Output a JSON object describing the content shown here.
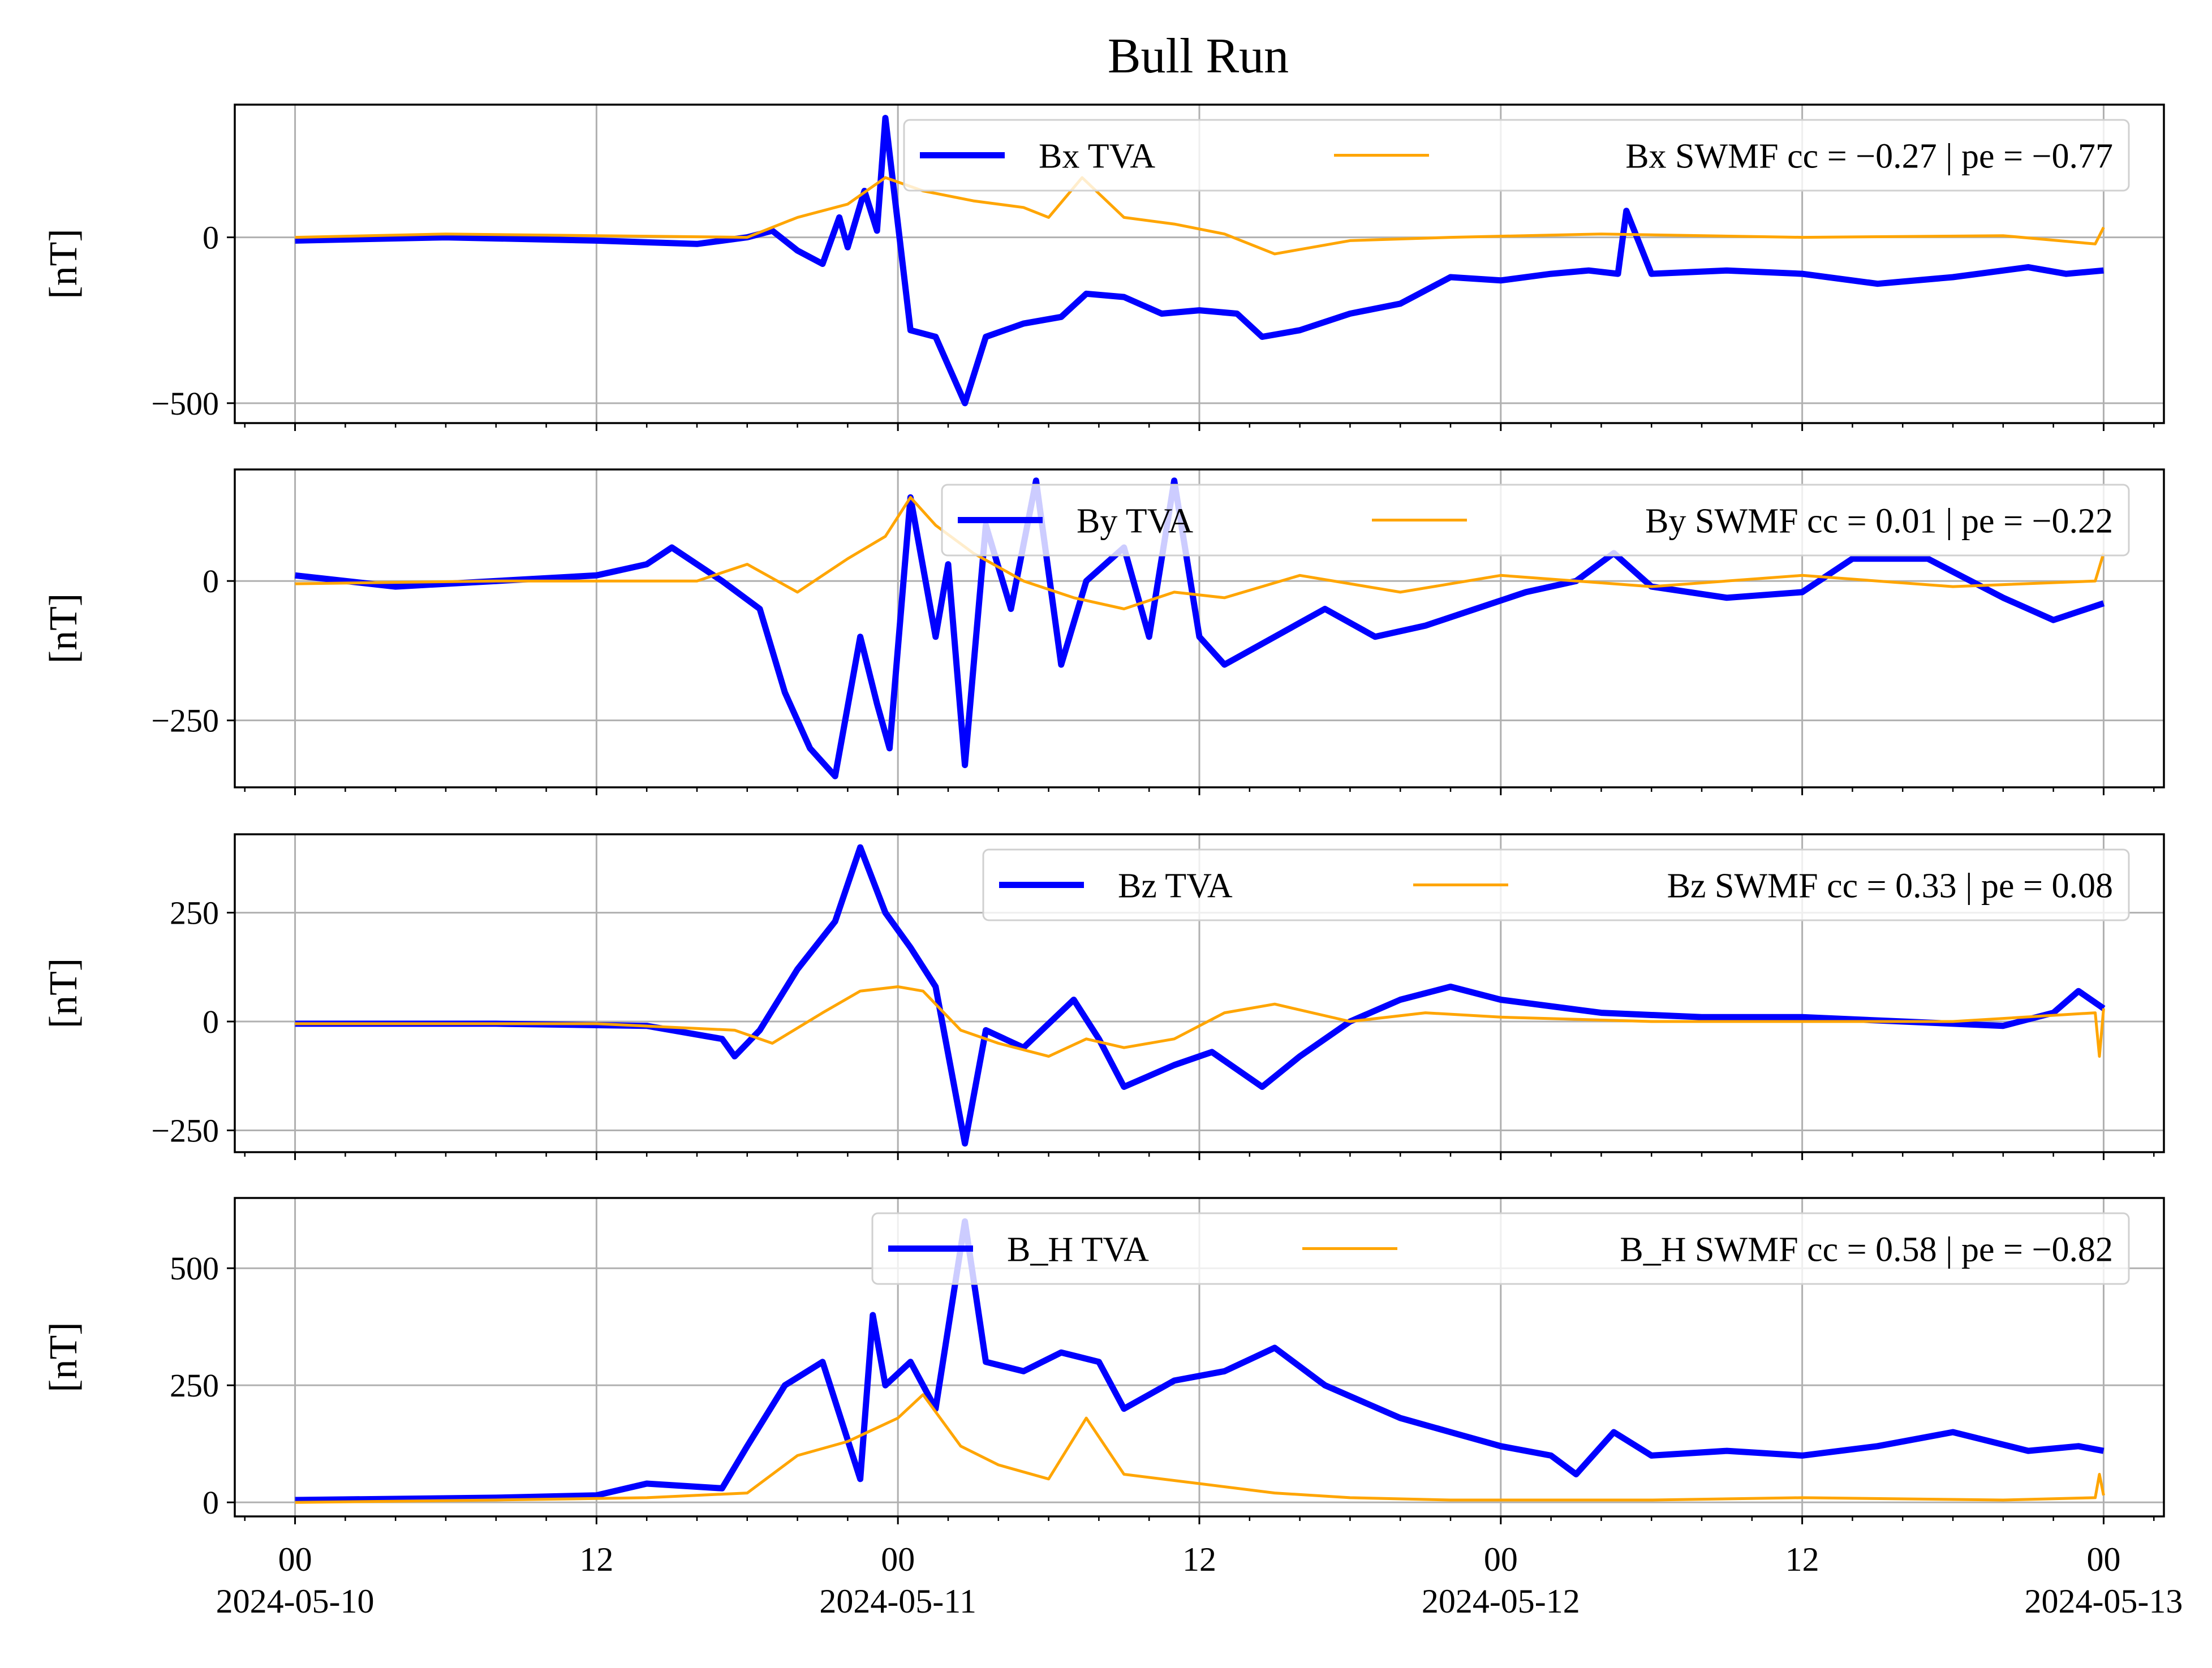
{
  "chart_data": {
    "type": "line",
    "title": "Bull Run",
    "x_axis": {
      "range": [
        "2024-05-09T21:36",
        "2024-05-13T02:24"
      ],
      "ticks": [
        {
          "value": "2024-05-10T00:00",
          "label": "00",
          "date": "2024-05-10"
        },
        {
          "value": "2024-05-10T12:00",
          "label": "12",
          "date": ""
        },
        {
          "value": "2024-05-11T00:00",
          "label": "00",
          "date": "2024-05-11"
        },
        {
          "value": "2024-05-11T12:00",
          "label": "12",
          "date": ""
        },
        {
          "value": "2024-05-12T00:00",
          "label": "00",
          "date": "2024-05-12"
        },
        {
          "value": "2024-05-12T12:00",
          "label": "12",
          "date": ""
        },
        {
          "value": "2024-05-13T00:00",
          "label": "00",
          "date": "2024-05-13"
        }
      ],
      "minor_tick_hours": 2
    },
    "grid": true,
    "legend_placement": "upper-right",
    "colors": {
      "tva": "#0000ff",
      "swmf": "#ffa500",
      "grid": "#b0b0b0"
    },
    "panels": [
      {
        "ylabel": "[nT]",
        "ylim": [
          -560,
          400
        ],
        "yticks": [
          {
            "value": 0,
            "label": "0"
          },
          {
            "value": -500,
            "label": "−500"
          }
        ],
        "series": [
          {
            "name": "Bx TVA",
            "color": "#0000ff",
            "x": [
              "2024-05-10T00:00",
              "2024-05-10T06:00",
              "2024-05-10T12:00",
              "2024-05-10T16:00",
              "2024-05-10T18:00",
              "2024-05-10T19:00",
              "2024-05-10T20:00",
              "2024-05-10T21:00",
              "2024-05-10T21:40",
              "2024-05-10T22:00",
              "2024-05-10T22:40",
              "2024-05-10T23:10",
              "2024-05-10T23:30",
              "2024-05-11T00:30",
              "2024-05-11T01:30",
              "2024-05-11T02:40",
              "2024-05-11T03:30",
              "2024-05-11T05:00",
              "2024-05-11T06:30",
              "2024-05-11T07:30",
              "2024-05-11T09:00",
              "2024-05-11T10:30",
              "2024-05-11T12:00",
              "2024-05-11T13:30",
              "2024-05-11T14:30",
              "2024-05-11T16:00",
              "2024-05-11T18:00",
              "2024-05-11T20:00",
              "2024-05-11T22:00",
              "2024-05-12T00:00",
              "2024-05-12T02:00",
              "2024-05-12T03:30",
              "2024-05-12T04:40",
              "2024-05-12T05:00",
              "2024-05-12T06:00",
              "2024-05-12T09:00",
              "2024-05-12T12:00",
              "2024-05-12T15:00",
              "2024-05-12T18:00",
              "2024-05-12T21:00",
              "2024-05-12T22:30",
              "2024-05-13T00:00"
            ],
            "y": [
              -10,
              0,
              -10,
              -20,
              0,
              20,
              -40,
              -80,
              60,
              -30,
              140,
              20,
              360,
              -280,
              -300,
              -500,
              -300,
              -260,
              -240,
              -170,
              -180,
              -230,
              -220,
              -230,
              -300,
              -280,
              -230,
              -200,
              -120,
              -130,
              -110,
              -100,
              -110,
              80,
              -110,
              -100,
              -110,
              -140,
              -120,
              -90,
              -110,
              -100
            ]
          },
          {
            "name": "Bx SWMF cc = −0.27 | pe = −0.77",
            "color": "#ffa500",
            "x": [
              "2024-05-10T00:00",
              "2024-05-10T06:00",
              "2024-05-10T12:00",
              "2024-05-10T18:00",
              "2024-05-10T20:00",
              "2024-05-10T22:00",
              "2024-05-10T23:30",
              "2024-05-11T01:00",
              "2024-05-11T03:00",
              "2024-05-11T05:00",
              "2024-05-11T06:00",
              "2024-05-11T07:20",
              "2024-05-11T09:00",
              "2024-05-11T11:00",
              "2024-05-11T13:00",
              "2024-05-11T15:00",
              "2024-05-11T18:00",
              "2024-05-11T22:00",
              "2024-05-12T04:00",
              "2024-05-12T12:00",
              "2024-05-12T20:00",
              "2024-05-12T23:40",
              "2024-05-13T00:00"
            ],
            "y": [
              0,
              10,
              5,
              0,
              60,
              100,
              180,
              140,
              110,
              90,
              60,
              180,
              60,
              40,
              10,
              -50,
              -10,
              0,
              10,
              0,
              5,
              -20,
              30
            ]
          }
        ]
      },
      {
        "ylabel": "[nT]",
        "ylim": [
          -370,
          200
        ],
        "yticks": [
          {
            "value": 0,
            "label": "0"
          },
          {
            "value": -250,
            "label": "−250"
          }
        ],
        "series": [
          {
            "name": "By TVA",
            "color": "#0000ff",
            "x": [
              "2024-05-10T00:00",
              "2024-05-10T04:00",
              "2024-05-10T08:00",
              "2024-05-10T12:00",
              "2024-05-10T14:00",
              "2024-05-10T15:00",
              "2024-05-10T17:00",
              "2024-05-10T18:30",
              "2024-05-10T19:30",
              "2024-05-10T20:30",
              "2024-05-10T21:30",
              "2024-05-10T22:30",
              "2024-05-10T23:10",
              "2024-05-10T23:40",
              "2024-05-11T00:30",
              "2024-05-11T01:30",
              "2024-05-11T02:00",
              "2024-05-11T02:40",
              "2024-05-11T03:30",
              "2024-05-11T04:30",
              "2024-05-11T05:30",
              "2024-05-11T06:30",
              "2024-05-11T07:30",
              "2024-05-11T09:00",
              "2024-05-11T10:00",
              "2024-05-11T11:00",
              "2024-05-11T12:00",
              "2024-05-11T13:00",
              "2024-05-11T15:00",
              "2024-05-11T17:00",
              "2024-05-11T19:00",
              "2024-05-11T21:00",
              "2024-05-11T23:00",
              "2024-05-12T01:00",
              "2024-05-12T03:00",
              "2024-05-12T04:30",
              "2024-05-12T06:00",
              "2024-05-12T09:00",
              "2024-05-12T12:00",
              "2024-05-12T14:00",
              "2024-05-12T17:00",
              "2024-05-12T20:00",
              "2024-05-12T22:00",
              "2024-05-13T00:00"
            ],
            "y": [
              10,
              -10,
              0,
              10,
              30,
              60,
              0,
              -50,
              -200,
              -300,
              -350,
              -100,
              -220,
              -300,
              150,
              -100,
              30,
              -330,
              100,
              -50,
              180,
              -150,
              0,
              60,
              -100,
              180,
              -100,
              -150,
              -100,
              -50,
              -100,
              -80,
              -50,
              -20,
              0,
              50,
              -10,
              -30,
              -20,
              40,
              40,
              -30,
              -70,
              -40
            ]
          },
          {
            "name": "By SWMF cc = 0.01 | pe = −0.22",
            "color": "#ffa500",
            "x": [
              "2024-05-10T00:00",
              "2024-05-10T08:00",
              "2024-05-10T16:00",
              "2024-05-10T18:00",
              "2024-05-10T20:00",
              "2024-05-10T22:00",
              "2024-05-10T23:30",
              "2024-05-11T00:30",
              "2024-05-11T01:30",
              "2024-05-11T03:00",
              "2024-05-11T05:00",
              "2024-05-11T07:00",
              "2024-05-11T09:00",
              "2024-05-11T11:00",
              "2024-05-11T13:00",
              "2024-05-11T16:00",
              "2024-05-11T20:00",
              "2024-05-12T00:00",
              "2024-05-12T06:00",
              "2024-05-12T12:00",
              "2024-05-12T18:00",
              "2024-05-12T23:40",
              "2024-05-13T00:00"
            ],
            "y": [
              -5,
              0,
              0,
              30,
              -20,
              40,
              80,
              150,
              100,
              50,
              0,
              -30,
              -50,
              -20,
              -30,
              10,
              -20,
              10,
              -10,
              10,
              -10,
              0,
              50
            ]
          }
        ]
      },
      {
        "ylabel": "[nT]",
        "ylim": [
          -300,
          430
        ],
        "yticks": [
          {
            "value": 250,
            "label": "250"
          },
          {
            "value": 0,
            "label": "0"
          },
          {
            "value": -250,
            "label": "−250"
          }
        ],
        "series": [
          {
            "name": "Bz TVA",
            "color": "#0000ff",
            "x": [
              "2024-05-10T00:00",
              "2024-05-10T08:00",
              "2024-05-10T14:00",
              "2024-05-10T17:00",
              "2024-05-10T17:30",
              "2024-05-10T18:30",
              "2024-05-10T20:00",
              "2024-05-10T21:30",
              "2024-05-10T22:30",
              "2024-05-10T23:30",
              "2024-05-11T00:30",
              "2024-05-11T01:30",
              "2024-05-11T02:40",
              "2024-05-11T03:30",
              "2024-05-11T05:00",
              "2024-05-11T07:00",
              "2024-05-11T08:00",
              "2024-05-11T09:00",
              "2024-05-11T11:00",
              "2024-05-11T12:30",
              "2024-05-11T14:30",
              "2024-05-11T16:00",
              "2024-05-11T18:00",
              "2024-05-11T20:00",
              "2024-05-11T22:00",
              "2024-05-12T00:00",
              "2024-05-12T04:00",
              "2024-05-12T08:00",
              "2024-05-12T12:00",
              "2024-05-12T16:00",
              "2024-05-12T20:00",
              "2024-05-12T22:00",
              "2024-05-12T23:00",
              "2024-05-13T00:00"
            ],
            "y": [
              -5,
              -5,
              -10,
              -40,
              -80,
              -20,
              120,
              230,
              400,
              250,
              170,
              80,
              -280,
              -20,
              -60,
              50,
              -40,
              -150,
              -100,
              -70,
              -150,
              -80,
              0,
              50,
              80,
              50,
              20,
              10,
              10,
              0,
              -10,
              20,
              70,
              30
            ]
          },
          {
            "name": "Bz SWMF cc = 0.33 | pe = 0.08",
            "color": "#ffa500",
            "x": [
              "2024-05-10T00:00",
              "2024-05-10T12:00",
              "2024-05-10T17:30",
              "2024-05-10T19:00",
              "2024-05-10T21:00",
              "2024-05-10T22:30",
              "2024-05-11T00:00",
              "2024-05-11T01:00",
              "2024-05-11T02:30",
              "2024-05-11T04:00",
              "2024-05-11T06:00",
              "2024-05-11T07:30",
              "2024-05-11T09:00",
              "2024-05-11T11:00",
              "2024-05-11T13:00",
              "2024-05-11T15:00",
              "2024-05-11T18:00",
              "2024-05-11T21:00",
              "2024-05-12T00:00",
              "2024-05-12T06:00",
              "2024-05-12T12:00",
              "2024-05-12T18:00",
              "2024-05-12T23:40",
              "2024-05-12T23:50",
              "2024-05-13T00:00"
            ],
            "y": [
              -5,
              -5,
              -20,
              -50,
              20,
              70,
              80,
              70,
              -20,
              -50,
              -80,
              -40,
              -60,
              -40,
              20,
              40,
              0,
              20,
              10,
              0,
              0,
              0,
              20,
              -80,
              30
            ]
          }
        ]
      },
      {
        "ylabel": "[nT]",
        "ylim": [
          -30,
          650
        ],
        "yticks": [
          {
            "value": 500,
            "label": "500"
          },
          {
            "value": 250,
            "label": "250"
          },
          {
            "value": 0,
            "label": "0"
          }
        ],
        "series": [
          {
            "name": "B_H TVA",
            "color": "#0000ff",
            "x": [
              "2024-05-10T00:00",
              "2024-05-10T08:00",
              "2024-05-10T12:00",
              "2024-05-10T14:00",
              "2024-05-10T17:00",
              "2024-05-10T18:00",
              "2024-05-10T19:30",
              "2024-05-10T21:00",
              "2024-05-10T22:30",
              "2024-05-10T23:00",
              "2024-05-10T23:30",
              "2024-05-11T00:30",
              "2024-05-11T01:30",
              "2024-05-11T02:40",
              "2024-05-11T03:30",
              "2024-05-11T05:00",
              "2024-05-11T06:30",
              "2024-05-11T08:00",
              "2024-05-11T09:00",
              "2024-05-11T11:00",
              "2024-05-11T13:00",
              "2024-05-11T15:00",
              "2024-05-11T17:00",
              "2024-05-11T20:00",
              "2024-05-11T22:00",
              "2024-05-12T00:00",
              "2024-05-12T02:00",
              "2024-05-12T03:00",
              "2024-05-12T04:30",
              "2024-05-12T06:00",
              "2024-05-12T09:00",
              "2024-05-12T12:00",
              "2024-05-12T15:00",
              "2024-05-12T18:00",
              "2024-05-12T21:00",
              "2024-05-12T23:00",
              "2024-05-13T00:00"
            ],
            "y": [
              5,
              10,
              15,
              40,
              30,
              120,
              250,
              300,
              50,
              400,
              250,
              300,
              200,
              600,
              300,
              280,
              320,
              300,
              200,
              260,
              280,
              330,
              250,
              180,
              150,
              120,
              100,
              60,
              150,
              100,
              110,
              100,
              120,
              150,
              110,
              120,
              110
            ]
          },
          {
            "name": "B_H SWMF cc = 0.58 | pe = −0.82",
            "color": "#ffa500",
            "x": [
              "2024-05-10T00:00",
              "2024-05-10T08:00",
              "2024-05-10T14:00",
              "2024-05-10T18:00",
              "2024-05-10T20:00",
              "2024-05-10T22:00",
              "2024-05-11T00:00",
              "2024-05-11T01:00",
              "2024-05-11T02:30",
              "2024-05-11T04:00",
              "2024-05-11T06:00",
              "2024-05-11T07:30",
              "2024-05-11T09:00",
              "2024-05-11T12:00",
              "2024-05-11T15:00",
              "2024-05-11T18:00",
              "2024-05-11T22:00",
              "2024-05-12T06:00",
              "2024-05-12T12:00",
              "2024-05-12T20:00",
              "2024-05-12T23:40",
              "2024-05-12T23:50",
              "2024-05-13T00:00"
            ],
            "y": [
              0,
              5,
              10,
              20,
              100,
              130,
              180,
              230,
              120,
              80,
              50,
              180,
              60,
              40,
              20,
              10,
              5,
              5,
              10,
              5,
              10,
              60,
              15
            ]
          }
        ]
      }
    ],
    "legends": [
      {
        "tva": "Bx TVA",
        "swmf": "Bx SWMF cc = −0.27 | pe = −0.77"
      },
      {
        "tva": "By TVA",
        "swmf": "By SWMF cc = 0.01 | pe = −0.22"
      },
      {
        "tva": "Bz TVA",
        "swmf": "Bz SWMF cc = 0.33 | pe = 0.08"
      },
      {
        "tva": "B_H TVA",
        "swmf": "B_H SWMF cc = 0.58 | pe = −0.82"
      }
    ]
  }
}
